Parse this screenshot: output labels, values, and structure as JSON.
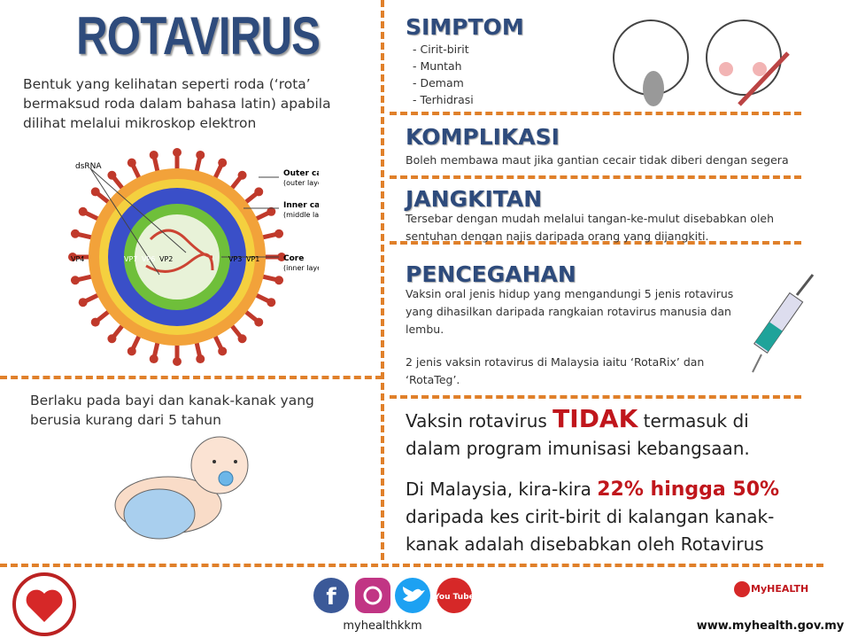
{
  "title": "ROTAVIRUS",
  "intro": "Bentuk yang kelihatan seperti roda (‘rota’ bermaksud roda dalam bahasa latin) apabila dilihat melalui mikroskop elektron",
  "diagram": {
    "dsrna": "dsRNA",
    "outer": "Outer capsid",
    "outer_sub": "(outer layer)",
    "inner": "Inner capsid",
    "inner_sub": "(middle layer)",
    "core": "Core",
    "core_sub": "(inner layer)",
    "vp": [
      "VP4",
      "VP7",
      "VP6",
      "VP2",
      "VP3",
      "VP1"
    ]
  },
  "infants": "Berlaku pada bayi dan kanak-kanak yang berusia kurang dari 5 tahun",
  "symptoms": {
    "heading": "SIMPTOM",
    "items": [
      "- Cirit-birit",
      "- Muntah",
      "- Demam",
      "- Terhidrasi"
    ]
  },
  "complications": {
    "heading": "KOMPLIKASI",
    "text": "Boleh membawa maut jika gantian cecair tidak diberi dengan segera"
  },
  "transmission": {
    "heading": "JANGKITAN",
    "text": "Tersebar dengan mudah melalui tangan-ke-mulut disebabkan oleh sentuhan dengan najis daripada orang yang dijangkiti."
  },
  "prevention": {
    "heading": "PENCEGAHAN",
    "paragraphs": [
      "Vaksin oral jenis hidup yang mengandungi 5 jenis rotavirus yang dihasilkan daripada rangkaian rotavirus manusia dan lembu.",
      "2 jenis vaksin rotavirus di Malaysia iaitu ‘RotaRix’ dan ‘RotaTeg’."
    ]
  },
  "notice": {
    "before": "Vaksin rotavirus ",
    "emphasis": "TIDAK",
    "after": " termasuk di dalam program imunisasi kebangsaan."
  },
  "statistic": {
    "before": "Di Malaysia, kira-kira ",
    "emphasis": "22% hingga 50%",
    "after": " daripada kes cirit-birit di kalangan kanak-kanak adalah disebabkan oleh Rotavirus"
  },
  "footer": {
    "facebook": "f",
    "youtube": "You Tube",
    "handle": "myhealthkkm",
    "brand": "MyHEALTH",
    "url": "www.myhealth.gov.my"
  }
}
